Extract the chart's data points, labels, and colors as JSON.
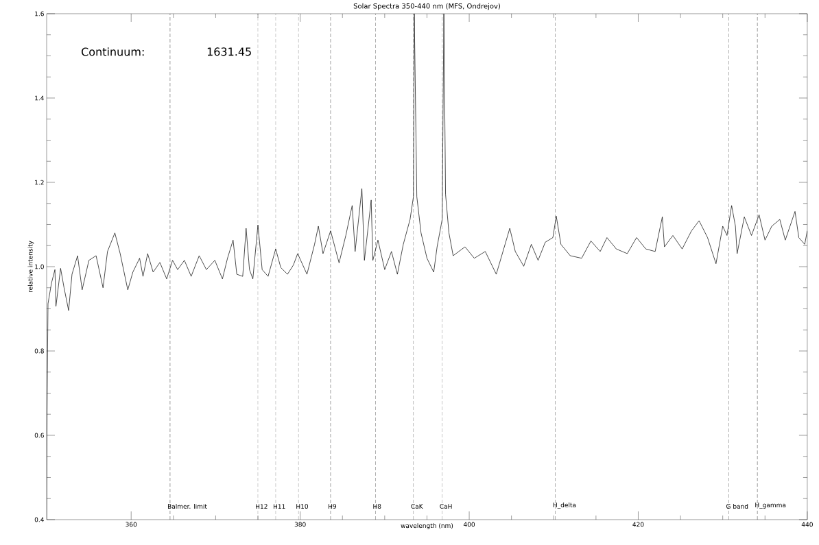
{
  "chart_data": {
    "type": "line",
    "title": "Solar Spectra 350-440 nm (MFS, Ondrejov)",
    "xlabel": "wavelength (nm)",
    "ylabel": "relative intensity",
    "annotations": [
      "Continuum:",
      "1631.45"
    ],
    "xlim": [
      350,
      440
    ],
    "xticks": [
      360,
      380,
      400,
      420,
      440
    ],
    "ylim": [
      0.4,
      1.6
    ],
    "yticks": [
      0.4,
      0.6,
      0.8,
      {
        "value": 1.0,
        "label": "1.0"
      },
      1.2,
      1.4,
      1.6
    ],
    "series": [
      {
        "color": "#000000",
        "x": [
          350.0,
          350.05,
          350.16,
          350.57,
          350.98,
          351.1,
          351.65,
          352.06,
          352.6,
          353.0,
          353.66,
          354.2,
          355.0,
          355.85,
          356.67,
          357.2,
          358.07,
          358.7,
          359.6,
          360.2,
          361.0,
          361.4,
          361.95,
          362.6,
          363.4,
          364.2,
          364.9,
          365.5,
          366.3,
          367.1,
          368.05,
          368.9,
          369.9,
          370.8,
          371.4,
          372.06,
          372.5,
          373.2,
          373.6,
          374.0,
          374.4,
          375.0,
          375.5,
          376.2,
          377.1,
          377.7,
          378.5,
          379.2,
          379.7,
          380.8,
          381.7,
          382.15,
          382.7,
          383.6,
          384.6,
          385.4,
          386.15,
          386.5,
          387.3,
          387.6,
          388.4,
          388.6,
          389.2,
          390.0,
          390.8,
          391.5,
          392.2,
          393.0,
          393.4,
          393.5,
          393.8,
          394.3,
          395.0,
          395.8,
          396.2,
          396.8,
          397.0,
          397.2,
          397.6,
          398.1,
          399.5,
          400.6,
          401.9,
          403.2,
          404.8,
          405.45,
          406.45,
          407.35,
          408.15,
          409.0,
          409.9,
          410.3,
          410.85,
          411.95,
          413.3,
          414.4,
          415.5,
          416.3,
          417.4,
          418.7,
          419.8,
          420.9,
          422.0,
          422.85,
          423.1,
          424.1,
          425.2,
          426.3,
          427.2,
          428.2,
          429.2,
          430.0,
          430.5,
          431.05,
          431.5,
          431.7,
          432.55,
          433.4,
          434.3,
          435.0,
          435.8,
          436.75,
          437.4,
          438.55,
          439.0,
          439.7,
          440.0
        ],
        "values": [
          0.4,
          0.66,
          0.912,
          0.961,
          0.993,
          0.906,
          0.996,
          0.95,
          0.896,
          0.982,
          1.026,
          0.945,
          1.015,
          1.026,
          0.95,
          1.036,
          1.08,
          1.031,
          0.945,
          0.987,
          1.02,
          0.977,
          1.031,
          0.987,
          1.01,
          0.971,
          1.015,
          0.993,
          1.015,
          0.977,
          1.026,
          0.993,
          1.015,
          0.971,
          1.02,
          1.063,
          0.982,
          0.977,
          1.091,
          0.993,
          0.971,
          1.099,
          0.993,
          0.977,
          1.042,
          0.998,
          0.982,
          1.004,
          1.031,
          0.982,
          1.053,
          1.096,
          1.031,
          1.085,
          1.009,
          1.074,
          1.145,
          1.036,
          1.185,
          1.015,
          1.158,
          1.015,
          1.063,
          0.993,
          1.036,
          0.982,
          1.053,
          1.112,
          1.166,
          1.6,
          1.166,
          1.08,
          1.02,
          0.987,
          1.047,
          1.112,
          1.6,
          1.172,
          1.08,
          1.026,
          1.047,
          1.02,
          1.036,
          0.982,
          1.091,
          1.036,
          1.001,
          1.053,
          1.015,
          1.058,
          1.069,
          1.12,
          1.053,
          1.026,
          1.02,
          1.061,
          1.036,
          1.069,
          1.042,
          1.031,
          1.069,
          1.042,
          1.036,
          1.118,
          1.047,
          1.074,
          1.042,
          1.085,
          1.109,
          1.069,
          1.007,
          1.096,
          1.074,
          1.145,
          1.096,
          1.031,
          1.118,
          1.074,
          1.123,
          1.063,
          1.096,
          1.112,
          1.063,
          1.131,
          1.069,
          1.053,
          1.085
        ]
      }
    ],
    "ref_lines": [
      {
        "axis": "x",
        "value": 364.6,
        "label": "Balmer. limit",
        "line_style": "dashed"
      },
      {
        "axis": "x",
        "value": 375.0,
        "label": "H12",
        "line_style": "dashed"
      },
      {
        "axis": "x",
        "value": 377.1,
        "label": "H11",
        "line_style": "dashed"
      },
      {
        "axis": "x",
        "value": 379.8,
        "label": "H10",
        "line_style": "dashed"
      },
      {
        "axis": "x",
        "value": 383.6,
        "label": "H9",
        "line_style": "dashed"
      },
      {
        "axis": "x",
        "value": 388.9,
        "label": "H8",
        "line_style": "dashed"
      },
      {
        "axis": "x",
        "value": 393.4,
        "label": "CaK",
        "line_style": "dashed"
      },
      {
        "axis": "x",
        "value": 396.8,
        "label": "CaH",
        "line_style": "dashed"
      },
      {
        "axis": "x",
        "value": 410.2,
        "label": "H_delta",
        "line_style": "dashed"
      },
      {
        "axis": "x",
        "value": 430.7,
        "label": "G band",
        "line_style": "dashed"
      },
      {
        "axis": "x",
        "value": 434.1,
        "label": "H_gamma",
        "line_style": "dashed"
      }
    ]
  }
}
